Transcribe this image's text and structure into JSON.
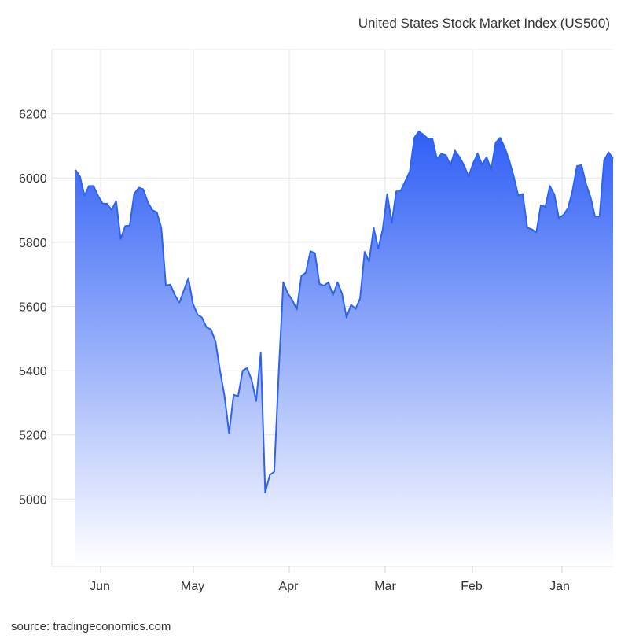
{
  "title": "United States Stock Market Index (US500)",
  "source": "source: tradingeconomics.com",
  "chart_data": {
    "type": "area",
    "title": "United States Stock Market Index (US500)",
    "xlabel": "",
    "ylabel": "",
    "x_order": "reversed",
    "y_ticks": [
      5000,
      5200,
      5400,
      5600,
      5800,
      6000,
      6200
    ],
    "x_ticks": [
      "Jun",
      "May",
      "Apr",
      "Mar",
      "Feb",
      "Jan"
    ],
    "ylim": [
      4790,
      6400
    ],
    "grid": true,
    "colors": {
      "line": "#2d63f0",
      "fill_top": "#2f5ff5",
      "fill_bottom": "#ffffff"
    },
    "series": [
      {
        "values": [
          6025,
          6005,
          5945,
          5975,
          5975,
          5945,
          5920,
          5920,
          5900,
          5928,
          5810,
          5850,
          5852,
          5950,
          5970,
          5965,
          5925,
          5900,
          5893,
          5845,
          5665,
          5668,
          5635,
          5612,
          5650,
          5688,
          5608,
          5575,
          5565,
          5535,
          5528,
          5490,
          5400,
          5320,
          5205,
          5325,
          5320,
          5400,
          5408,
          5370,
          5305,
          5455,
          5020,
          5075,
          5085,
          5400,
          5675,
          5640,
          5620,
          5590,
          5695,
          5705,
          5772,
          5766,
          5670,
          5665,
          5675,
          5635,
          5675,
          5640,
          5565,
          5605,
          5592,
          5625,
          5770,
          5740,
          5845,
          5780,
          5840,
          5950,
          5860,
          5958,
          5960,
          5990,
          6020,
          6125,
          6145,
          6135,
          6122,
          6122,
          6060,
          6075,
          6071,
          6040,
          6085,
          6065,
          6040,
          6005,
          6045,
          6076,
          6042,
          6065,
          6025,
          6110,
          6125,
          6095,
          6055,
          6005,
          5945,
          5950,
          5845,
          5840,
          5830,
          5915,
          5910,
          5975,
          5948,
          5875,
          5885,
          5905,
          5960,
          6037,
          6040,
          5982,
          5940,
          5880,
          5880,
          6055,
          6080,
          6060
        ]
      }
    ]
  }
}
